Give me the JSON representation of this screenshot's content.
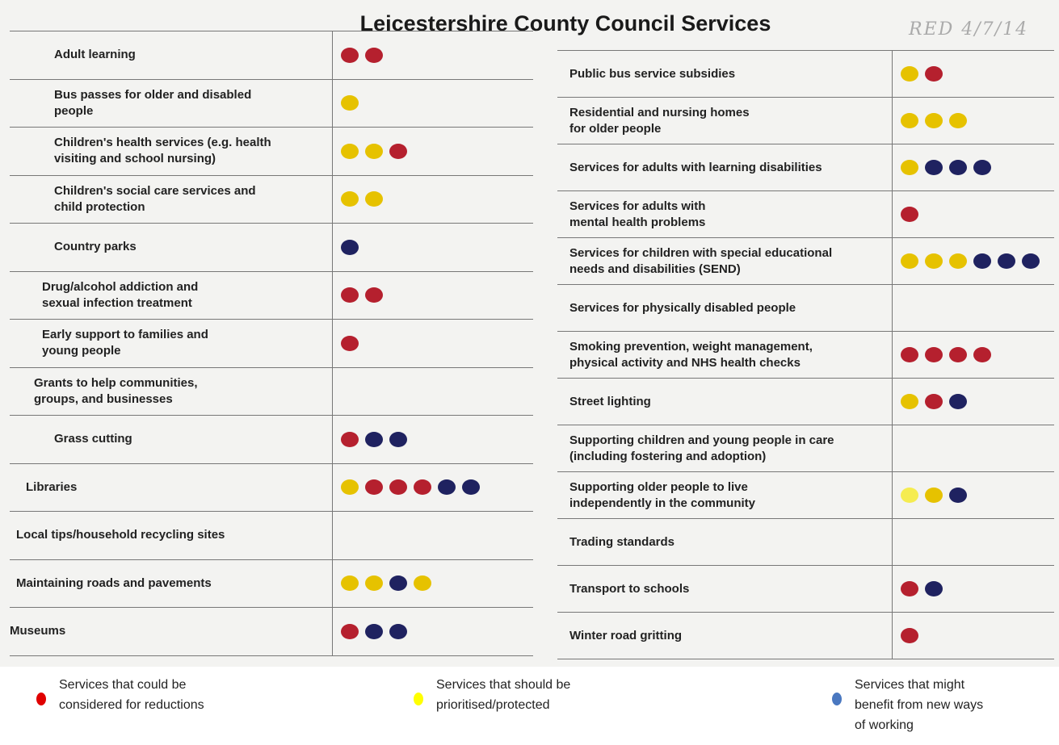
{
  "title": "Leicestershire County Council Services",
  "annotation": "RED 4/7/14",
  "tables": [
    {
      "rows": [
        {
          "label": "Adult learning",
          "dots": [
            "#b5202e",
            "#b5202e"
          ]
        },
        {
          "label": "Bus passes for older and disabled\npeople",
          "dots": [
            "#e6c200"
          ]
        },
        {
          "label": "Children's health services (e.g. health\nvisiting and school nursing)",
          "dots": [
            "#e6c200",
            "#e6c200",
            "#b5202e"
          ]
        },
        {
          "label": "Children's social care services and\nchild protection",
          "dots": [
            "#e6c200",
            "#e6c200"
          ]
        },
        {
          "label": "Country parks",
          "dots": [
            "#1f2260"
          ]
        },
        {
          "label": "Drug/alcohol addiction and\nsexual infection treatment",
          "dots": [
            "#b5202e",
            "#b5202e"
          ]
        },
        {
          "label": "Early support to families and\nyoung people",
          "dots": [
            "#b5202e"
          ]
        },
        {
          "label": "Grants to help communities,\ngroups, and businesses",
          "dots": []
        },
        {
          "label": "Grass cutting",
          "dots": [
            "#b5202e",
            "#1f2260",
            "#1f2260"
          ]
        },
        {
          "label": "Libraries",
          "dots": [
            "#e6c200",
            "#b5202e",
            "#b5202e",
            "#b5202e",
            "#1f2260",
            "#1f2260"
          ]
        },
        {
          "label": "Local tips/household recycling sites",
          "dots": []
        },
        {
          "label": "Maintaining roads and pavements",
          "dots": [
            "#e6c200",
            "#e6c200",
            "#1f2260",
            "#e6c200"
          ]
        },
        {
          "label": "Museums",
          "dots": [
            "#b5202e",
            "#1f2260",
            "#1f2260"
          ]
        }
      ]
    },
    {
      "rows": [
        {
          "label": "Public bus service subsidies",
          "dots": [
            "#e6c200",
            "#b5202e"
          ]
        },
        {
          "label": "Residential and nursing homes\nfor older people",
          "dots": [
            "#e6c200",
            "#e6c200",
            "#e6c200"
          ]
        },
        {
          "label": "Services for adults with learning disabilities",
          "dots": [
            "#e6c200",
            "#1f2260",
            "#1f2260",
            "#1f2260"
          ]
        },
        {
          "label": "Services for adults with\nmental health problems",
          "dots": [
            "#b5202e"
          ]
        },
        {
          "label": "Services for children with special educational\nneeds and disabilities (SEND)",
          "dots": [
            "#e6c200",
            "#e6c200",
            "#e6c200",
            "#1f2260",
            "#1f2260",
            "#1f2260"
          ]
        },
        {
          "label": "Services for physically disabled people",
          "dots": []
        },
        {
          "label": "Smoking prevention, weight management,\nphysical activity and NHS health checks",
          "dots": [
            "#b5202e",
            "#b5202e",
            "#b5202e",
            "#b5202e"
          ]
        },
        {
          "label": "Street lighting",
          "dots": [
            "#e6c200",
            "#b5202e",
            "#1f2260"
          ]
        },
        {
          "label": "Supporting children and young people in care\n(including fostering and adoption)",
          "dots": []
        },
        {
          "label": "Supporting older people to live\nindependently in the community",
          "dots": [
            "#f5ec50",
            "#e6c200",
            "#1f2260"
          ]
        },
        {
          "label": "Trading standards",
          "dots": []
        },
        {
          "label": "Transport to schools",
          "dots": [
            "#b5202e",
            "#1f2260"
          ]
        },
        {
          "label": "Winter road gritting",
          "dots": [
            "#b5202e"
          ]
        }
      ]
    }
  ],
  "legend": [
    {
      "label": "Services that could be\nconsidered for reductions",
      "color": "#e00000"
    },
    {
      "label": "Services that should be\nprioritised/protected",
      "color": "#ffff00"
    },
    {
      "label": "Services that might\nbenefit from new ways\nof working",
      "color": "#4a78c0"
    }
  ]
}
